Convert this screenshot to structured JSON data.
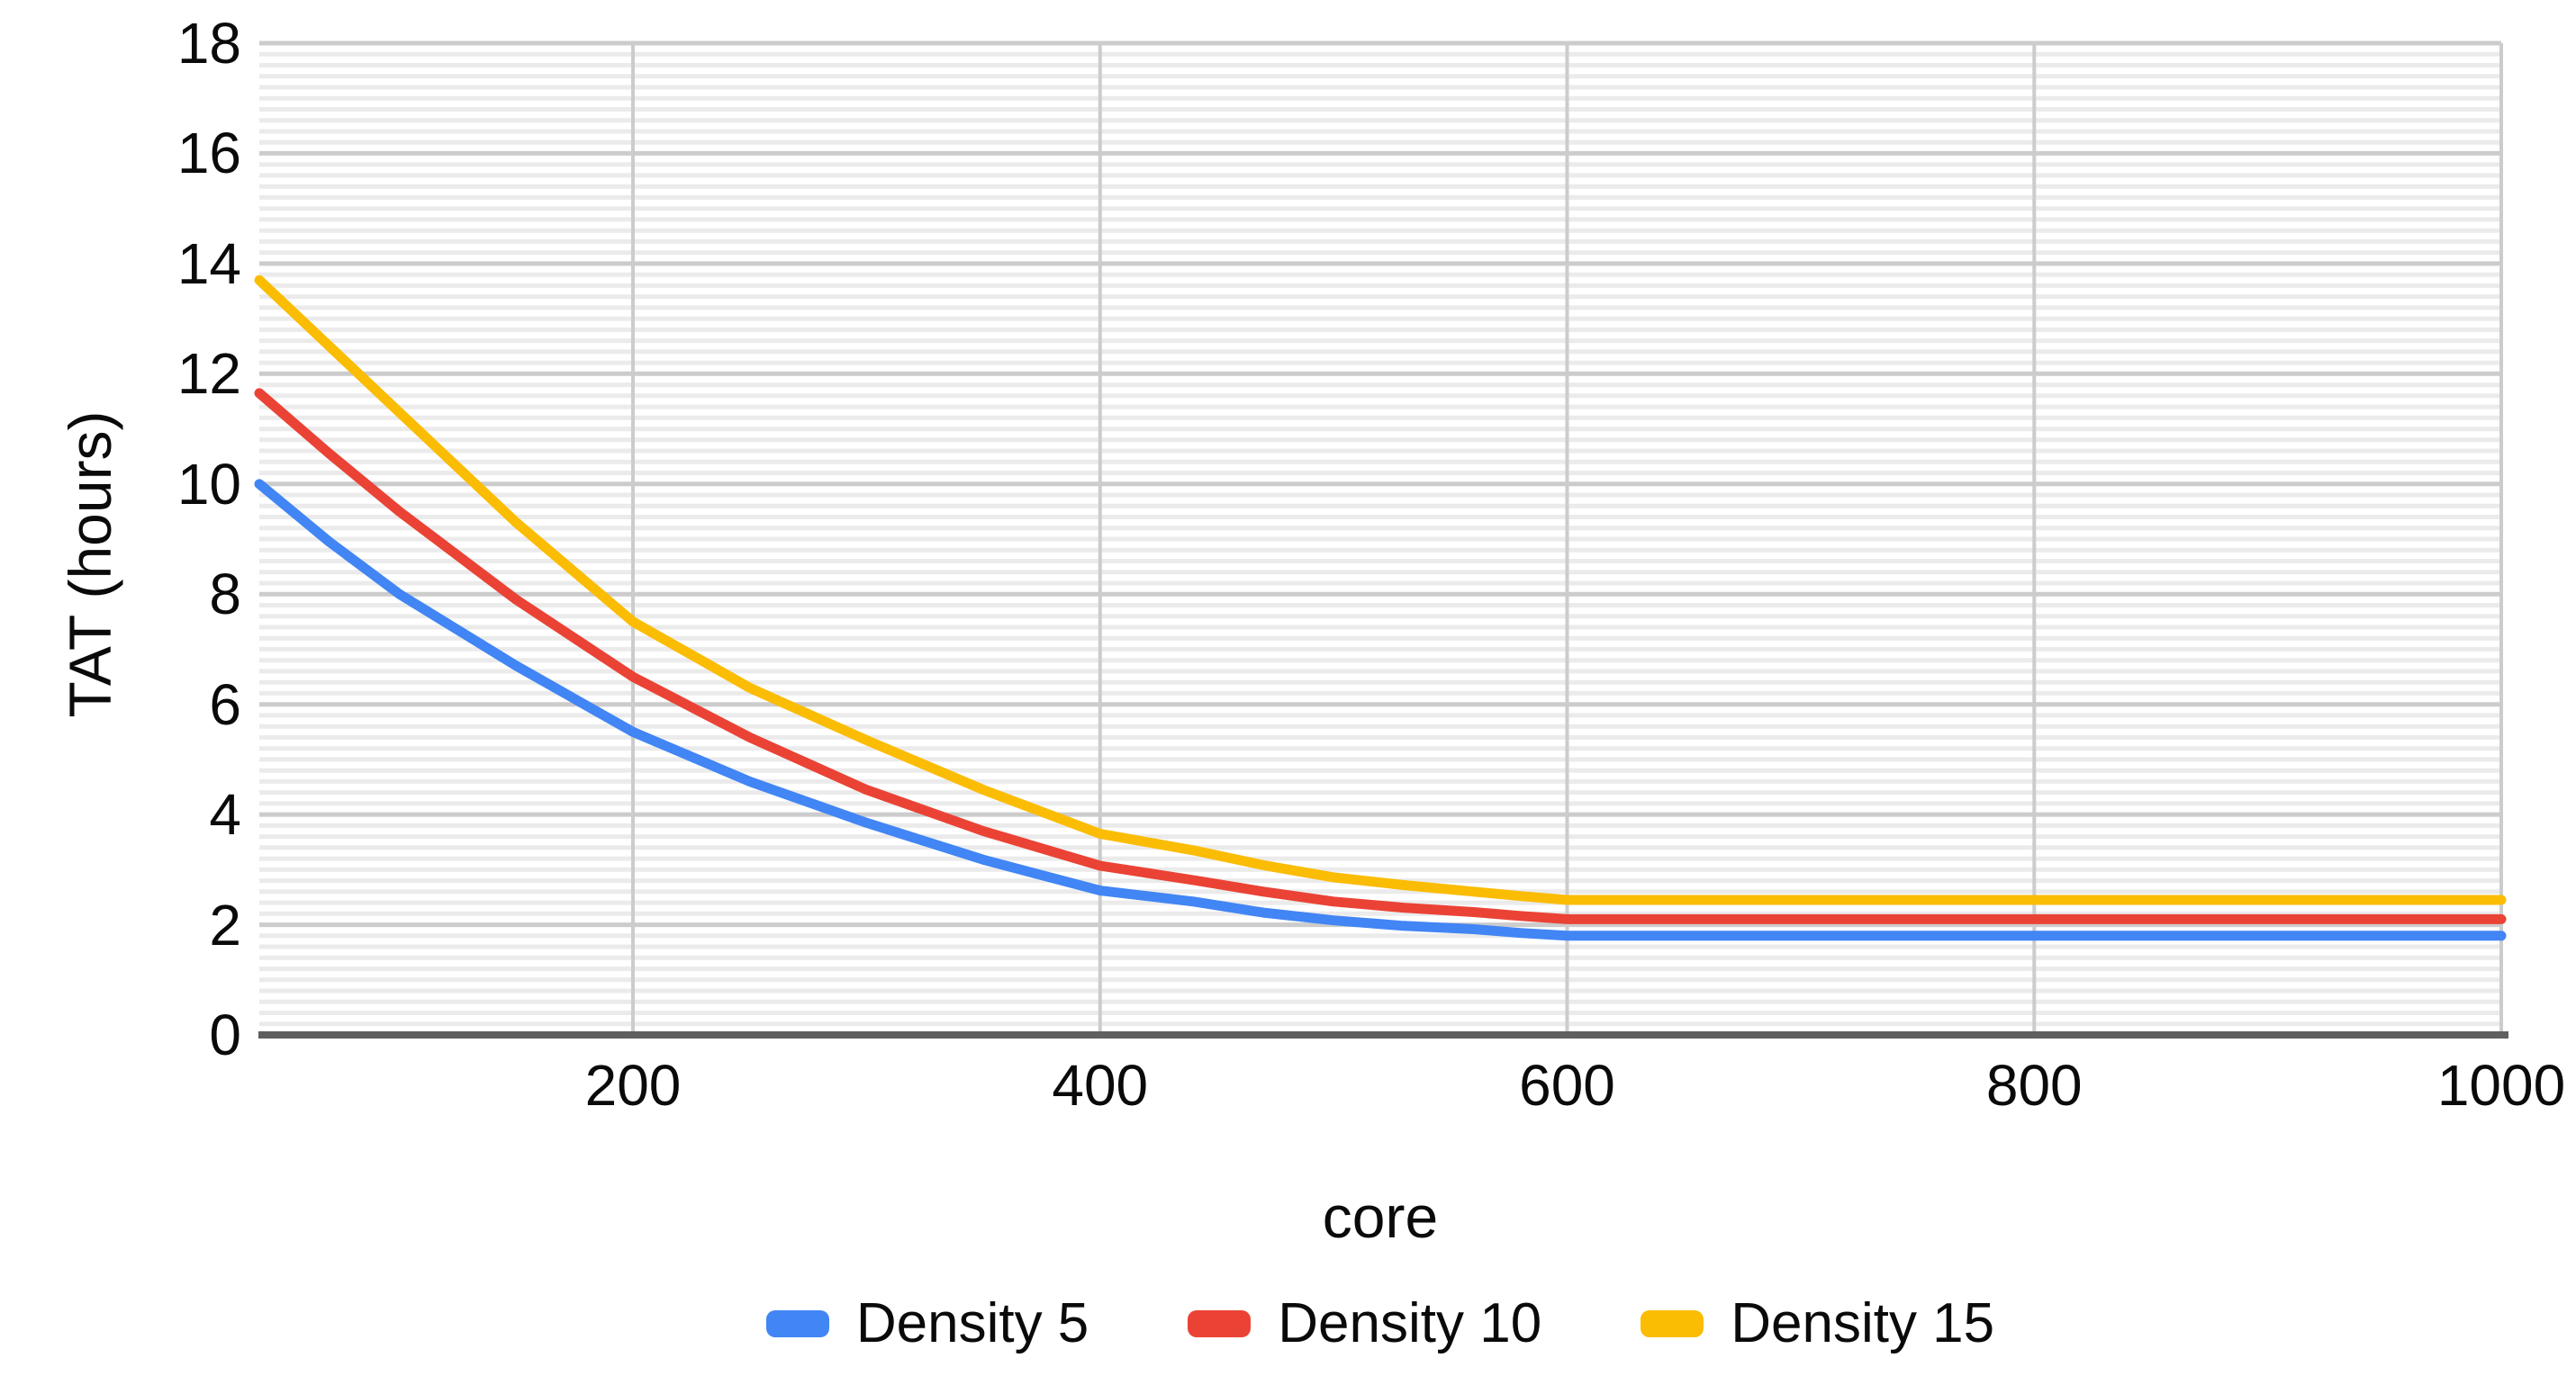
{
  "chart_data": {
    "type": "line",
    "title": "",
    "xlabel": "core",
    "ylabel": "TAT (hours)",
    "xlim": [
      40,
      1000
    ],
    "ylim": [
      0,
      18
    ],
    "x_ticks": [
      200,
      400,
      600,
      800,
      1000
    ],
    "y_ticks": [
      0,
      2,
      4,
      6,
      8,
      10,
      12,
      14,
      16,
      18
    ],
    "y_minor_step": 0.2,
    "grid": "horizontal major+minor, vertical at x ticks",
    "legend_position": "bottom",
    "x": [
      40,
      70,
      100,
      150,
      200,
      250,
      300,
      350,
      400,
      440,
      470,
      500,
      530,
      560,
      580,
      600,
      700,
      800,
      900,
      1000
    ],
    "series": [
      {
        "name": "Density 5",
        "color": "#4285F4",
        "values": [
          10.0,
          8.95,
          8.0,
          6.7,
          5.5,
          4.6,
          3.85,
          3.18,
          2.62,
          2.42,
          2.22,
          2.08,
          1.98,
          1.92,
          1.85,
          1.8,
          1.8,
          1.8,
          1.8,
          1.8
        ]
      },
      {
        "name": "Density 10",
        "color": "#EA4335",
        "values": [
          11.65,
          10.55,
          9.5,
          7.9,
          6.5,
          5.4,
          4.45,
          3.7,
          3.07,
          2.81,
          2.6,
          2.42,
          2.31,
          2.23,
          2.16,
          2.1,
          2.1,
          2.1,
          2.1,
          2.1
        ]
      },
      {
        "name": "Density 15",
        "color": "#FBBC04",
        "values": [
          13.7,
          12.5,
          11.3,
          9.3,
          7.5,
          6.3,
          5.35,
          4.45,
          3.65,
          3.35,
          3.08,
          2.86,
          2.72,
          2.6,
          2.52,
          2.45,
          2.45,
          2.45,
          2.45,
          2.45
        ]
      }
    ]
  },
  "palette": {
    "axis_line": "#5f5f5f",
    "grid_major": "#cccccc",
    "grid_minor": "#ebebeb",
    "grid_vertical": "#cccccc",
    "text": "#0a0a0a",
    "background": "#ffffff"
  }
}
